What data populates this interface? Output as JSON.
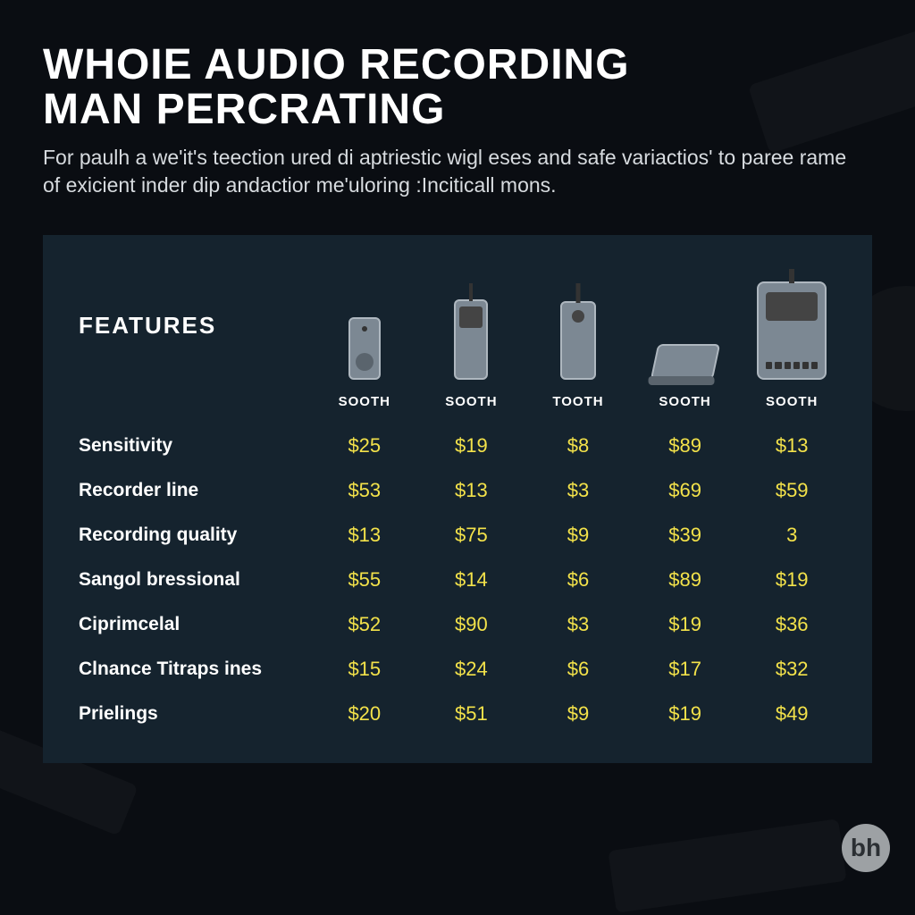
{
  "header": {
    "title_line1": "WHOIE AUDIO RECORDING",
    "title_line2": "MAN PERCRATING",
    "subtitle": "For paulh a we'it's teection ured di aptriestic wigl eses and safe variactios' to paree rame of exicient inder dip andactior me'uloring :Inciticall mons."
  },
  "panel": {
    "features_label": "FEATURES",
    "columns": [
      {
        "id": "col1",
        "label": "SOOTH",
        "icon": "recorder-small"
      },
      {
        "id": "col2",
        "label": "SOOTH",
        "icon": "recorder-tall-antenna"
      },
      {
        "id": "col3",
        "label": "TOOTH",
        "icon": "walkie-talkie"
      },
      {
        "id": "col4",
        "label": "SOOTH",
        "icon": "recorder-angled"
      },
      {
        "id": "col5",
        "label": "SOOTH",
        "icon": "recorder-large"
      }
    ],
    "rows": [
      {
        "label": "Sensitivity",
        "values": [
          "$25",
          "$19",
          "$8",
          "$89",
          "$13"
        ]
      },
      {
        "label": "Recorder line",
        "values": [
          "$53",
          "$13",
          "$3",
          "$69",
          "$59"
        ]
      },
      {
        "label": "Recording quality",
        "values": [
          "$13",
          "$75",
          "$9",
          "$39",
          "3"
        ]
      },
      {
        "label": "Sangol bressional",
        "values": [
          "$55",
          "$14",
          "$6",
          "$89",
          "$19"
        ]
      },
      {
        "label": "Ciprimcelal",
        "values": [
          "$52",
          "$90",
          "$3",
          "$19",
          "$36"
        ]
      },
      {
        "label": "Clnance Titraps ines",
        "values": [
          "$15",
          "$24",
          "$6",
          "$17",
          "$32"
        ]
      },
      {
        "label": "Prielings",
        "values": [
          "$20",
          "$51",
          "$9",
          "$19",
          "$49"
        ]
      }
    ]
  },
  "branding": {
    "logo_text": "bh"
  },
  "style": {
    "background_color": "#0a0d12",
    "panel_background": "#15232e",
    "title_color": "#ffffff",
    "subtitle_color": "#d7dbdf",
    "row_label_color": "#ffffff",
    "price_color": "#f3e24a",
    "col_label_color": "#ffffff",
    "logo_bg": "#9da1a4",
    "logo_fg": "#2b2f33",
    "title_fontsize": 48,
    "subtitle_fontsize": 23,
    "features_fontsize": 26,
    "row_label_fontsize": 21,
    "price_fontsize": 22,
    "col_label_fontsize": 15
  }
}
